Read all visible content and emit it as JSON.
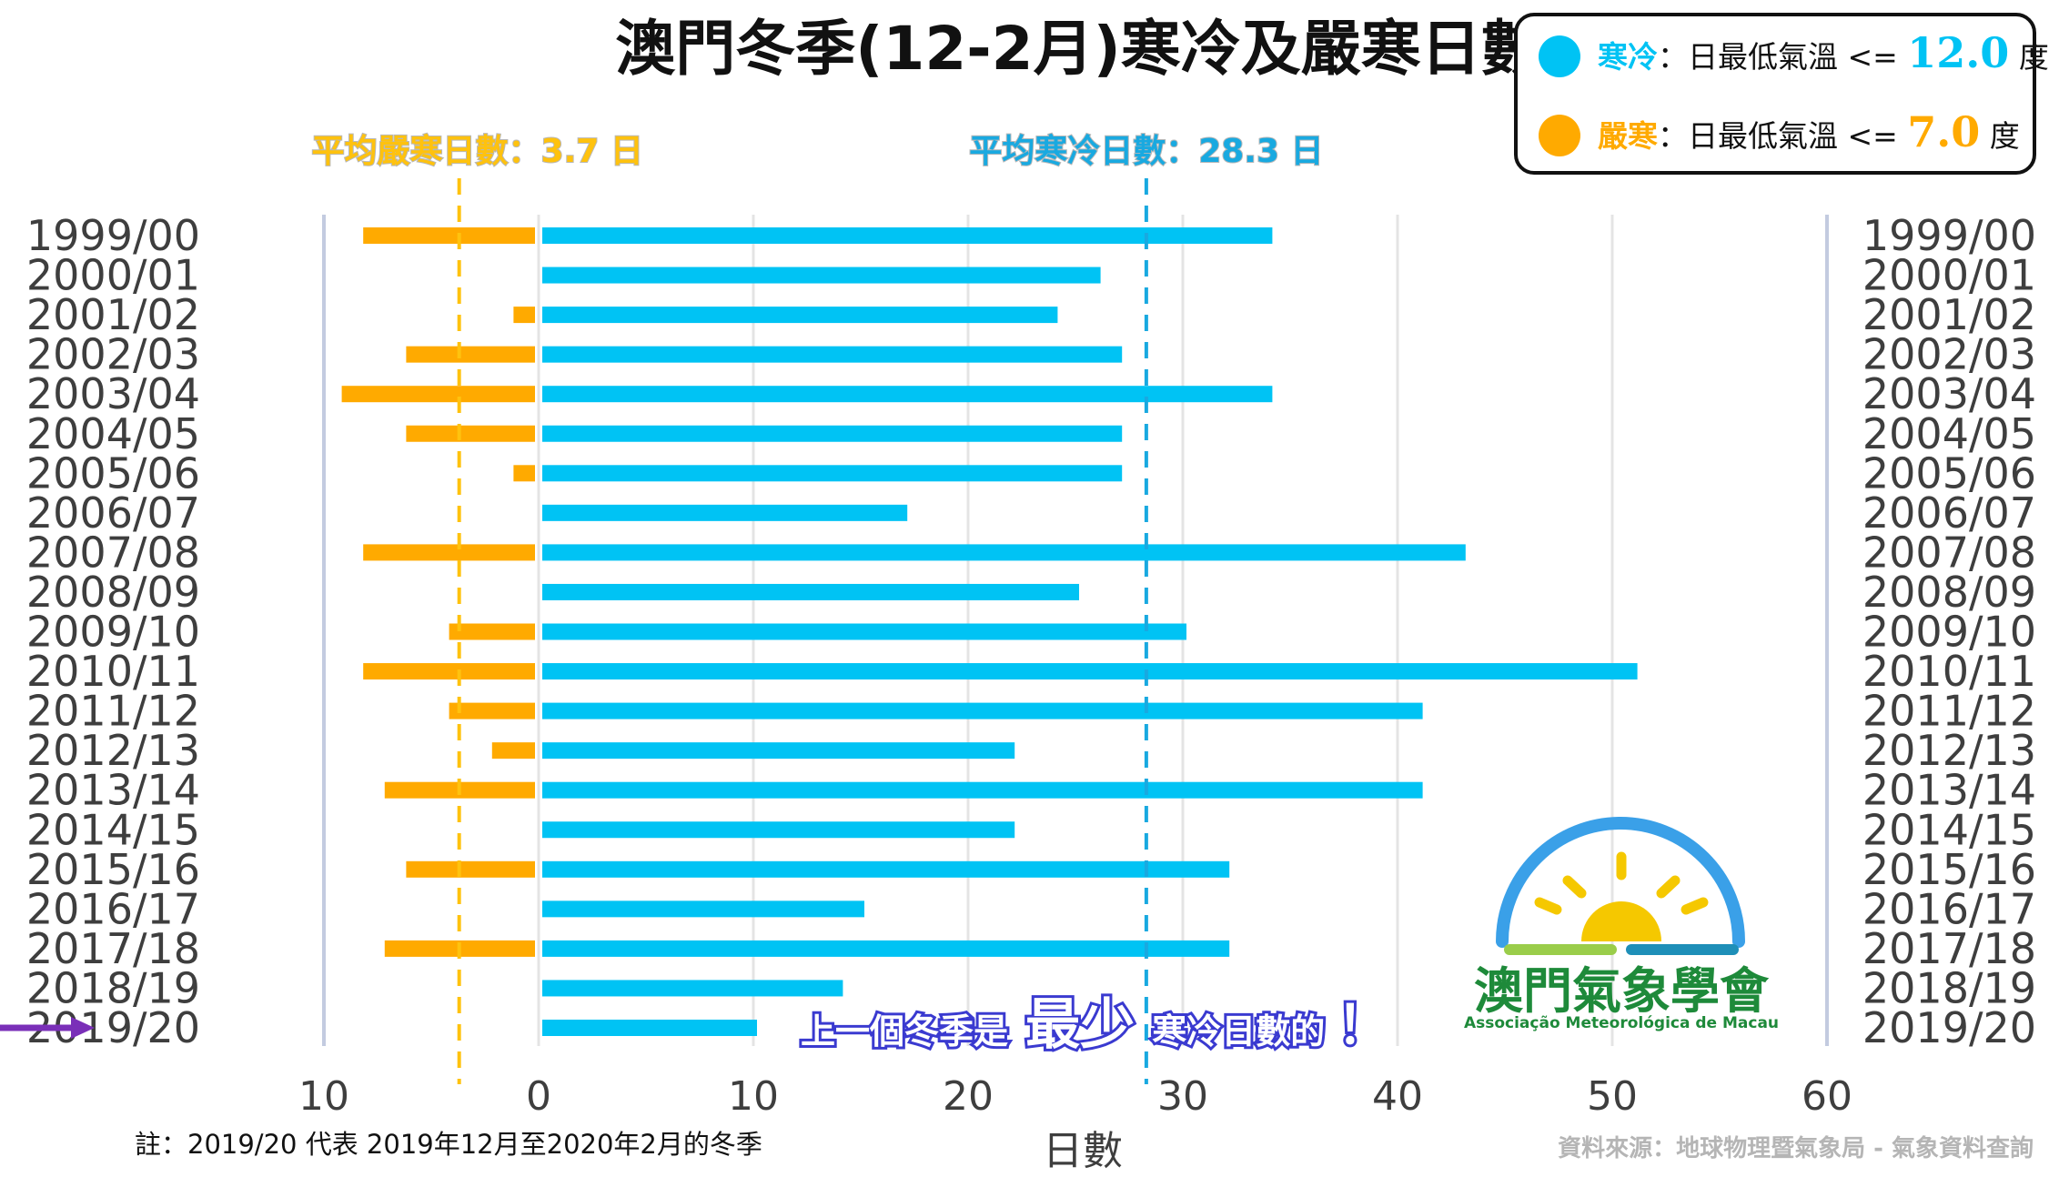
{
  "chart_data": {
    "type": "bar",
    "title": "澳門冬季(12-2月)寒冷及嚴寒日數",
    "xlabel": "日數",
    "xlim": [
      -10,
      60
    ],
    "x_ticks": [
      "10",
      "0",
      "10",
      "20",
      "30",
      "40",
      "50",
      "60"
    ],
    "categories": [
      "1999/00",
      "2000/01",
      "2001/02",
      "2002/03",
      "2003/04",
      "2004/05",
      "2005/06",
      "2006/07",
      "2007/08",
      "2008/09",
      "2009/10",
      "2010/11",
      "2011/12",
      "2012/13",
      "2013/14",
      "2014/15",
      "2015/16",
      "2016/17",
      "2017/18",
      "2018/19",
      "2019/20"
    ],
    "series": [
      {
        "name": "寒冷",
        "color": "#00c3f4",
        "direction": "right",
        "values": [
          34,
          26,
          24,
          27,
          34,
          27,
          27,
          17,
          43,
          25,
          30,
          51,
          41,
          22,
          41,
          22,
          32,
          15,
          32,
          14,
          10
        ]
      },
      {
        "name": "嚴寒",
        "color": "#ffaa00",
        "direction": "left",
        "values": [
          8,
          0,
          1,
          6,
          9,
          6,
          1,
          0,
          8,
          0,
          4,
          8,
          4,
          2,
          7,
          0,
          6,
          0,
          7,
          0,
          0
        ]
      }
    ],
    "averages": [
      {
        "label": "平均嚴寒日數：3.7 日",
        "value": 3.7,
        "color": "#ffc20e",
        "side": "left"
      },
      {
        "label": "平均寒冷日數：28.3 日",
        "value": 28.3,
        "color": "#19a9e0",
        "side": "right"
      }
    ],
    "legend": {
      "position": "top-right",
      "items": [
        {
          "name": "寒冷",
          "desc": "：日最低氣溫 <=",
          "value": "12.0",
          "unit": "度",
          "color": "#00c3f4"
        },
        {
          "name": "嚴寒",
          "desc": "：日最低氣溫 <=",
          "value": "7.0",
          "unit": "度",
          "color": "#ffaa00"
        }
      ]
    },
    "highlight": {
      "category": "2019/20",
      "parts": [
        "上一個冬季是",
        "最少",
        "寒冷日數的",
        "！"
      ],
      "arrow_color": "#7a2fb8"
    },
    "note": "註：2019/20 代表 2019年12月至2020年2月的冬季",
    "source": "資料來源：地球物理暨氣象局 - 氣象資料查詢",
    "logo": {
      "name": "澳門氣象學會",
      "subtitle": "Associação Meteorológica de Macau"
    },
    "grid": true
  }
}
